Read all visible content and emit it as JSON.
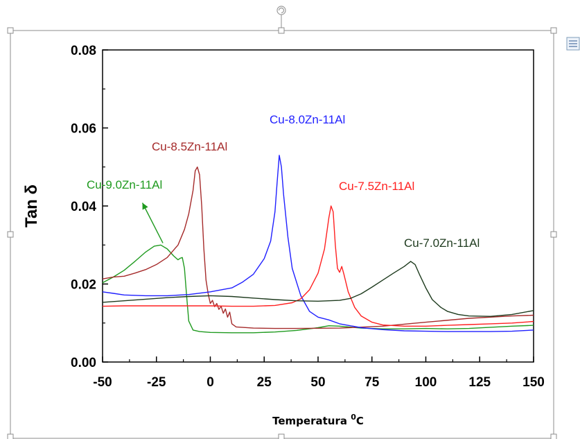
{
  "chart_data": {
    "type": "line",
    "xlabel": "Temperatura ⁰C",
    "ylabel": "Tan δ",
    "xlim": [
      -50,
      150
    ],
    "ylim": [
      0.0,
      0.08
    ],
    "xticks": [
      "-50",
      "-25",
      "0",
      "25",
      "50",
      "75",
      "100",
      "125",
      "150"
    ],
    "yticks": [
      "0.00",
      "0.02",
      "0.04",
      "0.06",
      "0.08"
    ],
    "grid": false,
    "series": [
      {
        "name": "Cu-9.0Zn-11Al",
        "color": "#1f9a1f",
        "points": [
          [
            -50,
            0.0203
          ],
          [
            -45,
            0.0218
          ],
          [
            -40,
            0.0235
          ],
          [
            -35,
            0.0258
          ],
          [
            -30,
            0.0282
          ],
          [
            -26,
            0.0297
          ],
          [
            -23,
            0.03
          ],
          [
            -20,
            0.029
          ],
          [
            -17,
            0.0272
          ],
          [
            -15,
            0.0262
          ],
          [
            -14,
            0.0266
          ],
          [
            -13,
            0.0268
          ],
          [
            -12,
            0.024
          ],
          [
            -11,
            0.017
          ],
          [
            -10,
            0.0105
          ],
          [
            -8,
            0.0082
          ],
          [
            -5,
            0.0078
          ],
          [
            0,
            0.0076
          ],
          [
            10,
            0.0075
          ],
          [
            20,
            0.0075
          ],
          [
            30,
            0.0077
          ],
          [
            40,
            0.0081
          ],
          [
            50,
            0.0088
          ],
          [
            55,
            0.0093
          ],
          [
            60,
            0.0092
          ],
          [
            70,
            0.0087
          ],
          [
            80,
            0.0085
          ],
          [
            90,
            0.0085
          ],
          [
            100,
            0.0086
          ],
          [
            110,
            0.0085
          ],
          [
            120,
            0.0086
          ],
          [
            130,
            0.0089
          ],
          [
            140,
            0.0092
          ],
          [
            150,
            0.0094
          ]
        ]
      },
      {
        "name": "Cu-8.5Zn-11Al",
        "color": "#a52a2a",
        "points": [
          [
            -50,
            0.0213
          ],
          [
            -45,
            0.0218
          ],
          [
            -40,
            0.022
          ],
          [
            -35,
            0.0228
          ],
          [
            -30,
            0.0237
          ],
          [
            -25,
            0.025
          ],
          [
            -20,
            0.0268
          ],
          [
            -15,
            0.03
          ],
          [
            -12,
            0.034
          ],
          [
            -10,
            0.038
          ],
          [
            -8,
            0.044
          ],
          [
            -7,
            0.049
          ],
          [
            -6,
            0.05
          ],
          [
            -5,
            0.048
          ],
          [
            -4,
            0.04
          ],
          [
            -3,
            0.029
          ],
          [
            -2,
            0.021
          ],
          [
            -1,
            0.0175
          ],
          [
            0,
            0.015
          ],
          [
            1,
            0.0158
          ],
          [
            2,
            0.0142
          ],
          [
            3,
            0.015
          ],
          [
            4,
            0.0135
          ],
          [
            5,
            0.0143
          ],
          [
            6,
            0.0125
          ],
          [
            7,
            0.0136
          ],
          [
            8,
            0.0115
          ],
          [
            9,
            0.0128
          ],
          [
            10,
            0.0098
          ],
          [
            12,
            0.009
          ],
          [
            20,
            0.0087
          ],
          [
            30,
            0.0086
          ],
          [
            40,
            0.0086
          ],
          [
            60,
            0.0087
          ],
          [
            80,
            0.0092
          ],
          [
            100,
            0.0102
          ],
          [
            120,
            0.0112
          ],
          [
            140,
            0.0118
          ],
          [
            150,
            0.012
          ]
        ]
      },
      {
        "name": "Cu-8.0Zn-11Al",
        "color": "#1f1fff",
        "points": [
          [
            -50,
            0.018
          ],
          [
            -45,
            0.0176
          ],
          [
            -40,
            0.0172
          ],
          [
            -30,
            0.017
          ],
          [
            -20,
            0.017
          ],
          [
            -10,
            0.0173
          ],
          [
            0,
            0.018
          ],
          [
            10,
            0.019
          ],
          [
            15,
            0.0205
          ],
          [
            20,
            0.0225
          ],
          [
            25,
            0.0265
          ],
          [
            28,
            0.031
          ],
          [
            30,
            0.0385
          ],
          [
            31,
            0.046
          ],
          [
            32,
            0.053
          ],
          [
            33,
            0.05
          ],
          [
            34,
            0.043
          ],
          [
            36,
            0.032
          ],
          [
            38,
            0.024
          ],
          [
            42,
            0.017
          ],
          [
            46,
            0.013
          ],
          [
            50,
            0.0115
          ],
          [
            55,
            0.0108
          ],
          [
            60,
            0.0098
          ],
          [
            70,
            0.0088
          ],
          [
            80,
            0.0083
          ],
          [
            90,
            0.008
          ],
          [
            100,
            0.0079
          ],
          [
            110,
            0.0078
          ],
          [
            120,
            0.0078
          ],
          [
            130,
            0.0078
          ],
          [
            140,
            0.0079
          ],
          [
            150,
            0.0082
          ]
        ]
      },
      {
        "name": "Cu-7.5Zn-11Al",
        "color": "#ff2020",
        "points": [
          [
            -50,
            0.0143
          ],
          [
            -40,
            0.0144
          ],
          [
            -30,
            0.0144
          ],
          [
            -20,
            0.0144
          ],
          [
            -10,
            0.0144
          ],
          [
            0,
            0.0144
          ],
          [
            10,
            0.0143
          ],
          [
            20,
            0.0143
          ],
          [
            30,
            0.0145
          ],
          [
            38,
            0.0152
          ],
          [
            42,
            0.0162
          ],
          [
            46,
            0.0185
          ],
          [
            50,
            0.0228
          ],
          [
            53,
            0.029
          ],
          [
            55,
            0.037
          ],
          [
            56,
            0.04
          ],
          [
            57,
            0.0385
          ],
          [
            58,
            0.03
          ],
          [
            59,
            0.024
          ],
          [
            60,
            0.023
          ],
          [
            61,
            0.0245
          ],
          [
            62,
            0.0225
          ],
          [
            64,
            0.018
          ],
          [
            67,
            0.014
          ],
          [
            70,
            0.0118
          ],
          [
            75,
            0.0102
          ],
          [
            80,
            0.0095
          ],
          [
            90,
            0.0092
          ],
          [
            100,
            0.0092
          ],
          [
            110,
            0.0094
          ],
          [
            120,
            0.0096
          ],
          [
            130,
            0.0098
          ],
          [
            140,
            0.01
          ],
          [
            150,
            0.0104
          ]
        ]
      },
      {
        "name": "Cu-7.0Zn-11Al",
        "color": "#1d3a1d",
        "points": [
          [
            -50,
            0.0153
          ],
          [
            -40,
            0.0157
          ],
          [
            -30,
            0.0161
          ],
          [
            -20,
            0.0165
          ],
          [
            -10,
            0.0168
          ],
          [
            0,
            0.017
          ],
          [
            10,
            0.0168
          ],
          [
            20,
            0.0164
          ],
          [
            30,
            0.016
          ],
          [
            40,
            0.0157
          ],
          [
            50,
            0.0156
          ],
          [
            60,
            0.0158
          ],
          [
            65,
            0.0163
          ],
          [
            70,
            0.0175
          ],
          [
            75,
            0.0192
          ],
          [
            80,
            0.021
          ],
          [
            85,
            0.0228
          ],
          [
            90,
            0.0245
          ],
          [
            93,
            0.0258
          ],
          [
            95,
            0.025
          ],
          [
            97,
            0.0225
          ],
          [
            100,
            0.019
          ],
          [
            103,
            0.016
          ],
          [
            105,
            0.015
          ],
          [
            107,
            0.014
          ],
          [
            110,
            0.013
          ],
          [
            115,
            0.0122
          ],
          [
            120,
            0.0118
          ],
          [
            130,
            0.0117
          ],
          [
            140,
            0.0122
          ],
          [
            150,
            0.0132
          ]
        ]
      }
    ],
    "annotations": [
      {
        "text": "Cu-9.0Zn-11Al",
        "color": "#1f9a1f"
      },
      {
        "text": "Cu-8.5Zn-11Al",
        "color": "#a52a2a"
      },
      {
        "text": "Cu-8.0Zn-11Al",
        "color": "#1f1fff"
      },
      {
        "text": "Cu-7.5Zn-11Al",
        "color": "#ff2020"
      },
      {
        "text": "Cu-7.0Zn-11Al",
        "color": "#1d3a1d"
      }
    ]
  }
}
